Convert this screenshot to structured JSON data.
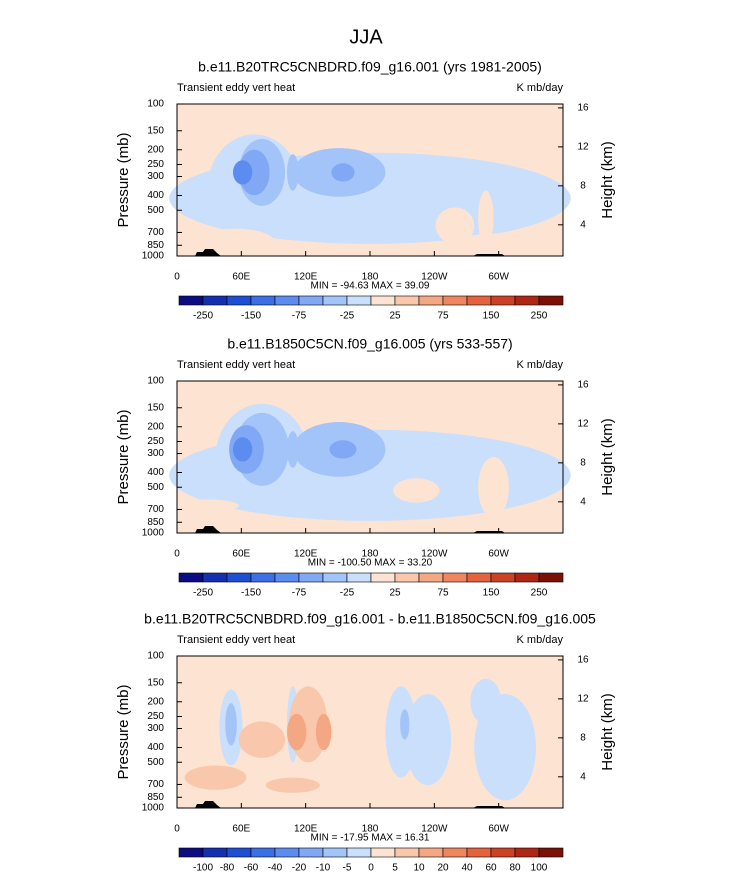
{
  "title": "JJA",
  "chart_data": [
    {
      "type": "contour",
      "title": "b.e11.B20TRC5CNBDRD.f09_g16.001 (yrs 1981-2005)",
      "left_label": "Transient eddy vert heat",
      "right_label": "K mb/day",
      "ylabel": "Pressure (mb)",
      "y2label": "Height (km)",
      "stats": "MIN = -94.63  MAX = 39.09",
      "xlim": [
        0,
        360
      ],
      "xticks": [
        0,
        {
          "value": 60,
          "label": "60E"
        },
        {
          "value": 120,
          "label": "120E"
        },
        180,
        {
          "value": 240,
          "label": "120W"
        },
        {
          "value": 300,
          "label": "60W"
        }
      ],
      "ylim": [
        1000,
        100
      ],
      "log_y": true,
      "yticks": [
        100,
        150,
        200,
        250,
        300,
        400,
        500,
        700,
        850,
        1000
      ],
      "y2lim": [
        0.8,
        16.4
      ],
      "y2ticks": [
        4,
        8,
        12,
        16
      ],
      "colorbar": {
        "levels": [
          -250,
          null,
          -150,
          null,
          -75,
          null,
          -25,
          null,
          25,
          null,
          75,
          null,
          150,
          null,
          250
        ],
        "colors": [
          "#0c0c82",
          "#1430b0",
          "#1e4fd2",
          "#3c6ee6",
          "#5c8cf0",
          "#80a8f5",
          "#a3c4f9",
          "#cadffb",
          "#fde4d2",
          "#f9c7ab",
          "#f4a783",
          "#ef8660",
          "#e4623c",
          "#cc4226",
          "#b02615",
          "#7a1006"
        ]
      }
    },
    {
      "type": "contour",
      "title": "b.e11.B1850C5CN.f09_g16.005 (yrs 533-557)",
      "left_label": "Transient eddy vert heat",
      "right_label": "K mb/day",
      "ylabel": "Pressure (mb)",
      "y2label": "Height (km)",
      "stats": "MIN = -100.50  MAX = 33.20",
      "xlim": [
        0,
        360
      ],
      "xticks": [
        0,
        {
          "value": 60,
          "label": "60E"
        },
        {
          "value": 120,
          "label": "120E"
        },
        180,
        {
          "value": 240,
          "label": "120W"
        },
        {
          "value": 300,
          "label": "60W"
        }
      ],
      "ylim": [
        1000,
        100
      ],
      "log_y": true,
      "yticks": [
        100,
        150,
        200,
        250,
        300,
        400,
        500,
        700,
        850,
        1000
      ],
      "y2lim": [
        0.8,
        16.4
      ],
      "y2ticks": [
        4,
        8,
        12,
        16
      ],
      "colorbar": {
        "levels": [
          -250,
          null,
          -150,
          null,
          -75,
          null,
          -25,
          null,
          25,
          null,
          75,
          null,
          150,
          null,
          250
        ],
        "colors": [
          "#0c0c82",
          "#1430b0",
          "#1e4fd2",
          "#3c6ee6",
          "#5c8cf0",
          "#80a8f5",
          "#a3c4f9",
          "#cadffb",
          "#fde4d2",
          "#f9c7ab",
          "#f4a783",
          "#ef8660",
          "#e4623c",
          "#cc4226",
          "#b02615",
          "#7a1006"
        ]
      }
    },
    {
      "type": "contour",
      "title": "b.e11.B20TRC5CNBDRD.f09_g16.001 - b.e11.B1850C5CN.f09_g16.005",
      "left_label": "Transient eddy vert heat",
      "right_label": "K mb/day",
      "ylabel": "Pressure (mb)",
      "y2label": "Height (km)",
      "stats": "MIN = -17.95  MAX = 16.31",
      "xlim": [
        0,
        360
      ],
      "xticks": [
        0,
        {
          "value": 60,
          "label": "60E"
        },
        {
          "value": 120,
          "label": "120E"
        },
        180,
        {
          "value": 240,
          "label": "120W"
        },
        {
          "value": 300,
          "label": "60W"
        }
      ],
      "ylim": [
        1000,
        100
      ],
      "log_y": true,
      "yticks": [
        100,
        150,
        200,
        250,
        300,
        400,
        500,
        700,
        850,
        1000
      ],
      "y2lim": [
        0.8,
        16.4
      ],
      "y2ticks": [
        4,
        8,
        12,
        16
      ],
      "colorbar": {
        "levels": [
          -100,
          -80,
          -60,
          -40,
          -20,
          -10,
          -5,
          0,
          5,
          10,
          20,
          40,
          60,
          80,
          100
        ],
        "colors": [
          "#0c0c82",
          "#1430b0",
          "#1e4fd2",
          "#3c6ee6",
          "#5c8cf0",
          "#80a8f5",
          "#a3c4f9",
          "#cadffb",
          "#fde4d2",
          "#f9c7ab",
          "#f4a783",
          "#ef8660",
          "#e4623c",
          "#cc4226",
          "#b02615",
          "#7a1006"
        ]
      }
    }
  ]
}
